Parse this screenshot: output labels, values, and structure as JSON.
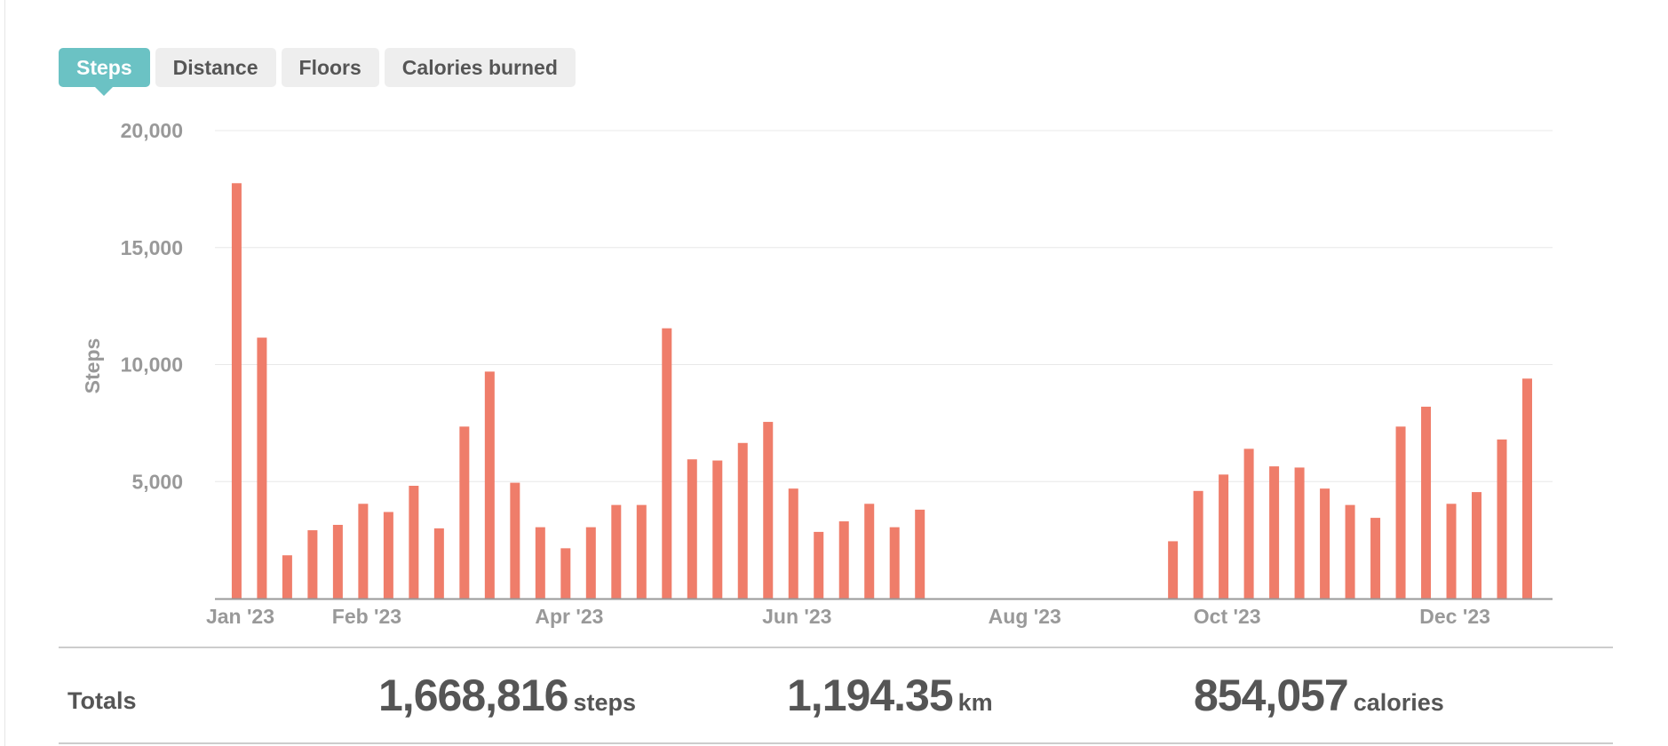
{
  "tabs": [
    {
      "label": "Steps",
      "active": true
    },
    {
      "label": "Distance",
      "active": false
    },
    {
      "label": "Floors",
      "active": false
    },
    {
      "label": "Calories burned",
      "active": false
    }
  ],
  "totals": {
    "label": "Totals",
    "steps": {
      "value": "1,668,816",
      "unit": "steps"
    },
    "distance": {
      "value": "1,194.35",
      "unit": "km"
    },
    "calories": {
      "value": "854,057",
      "unit": "calories"
    }
  },
  "colors": {
    "bar": "#ef7d6a",
    "accent": "#6bc2c4",
    "grid": "#e8e8e8",
    "axis": "#999999"
  },
  "chart_data": {
    "type": "bar",
    "ylabel": "Steps",
    "ylim": [
      0,
      20000
    ],
    "yticks": [
      5000,
      10000,
      15000,
      20000
    ],
    "ytick_labels": [
      "5,000",
      "10,000",
      "15,000",
      "20,000"
    ],
    "xlim": [
      "2022-12-26",
      "2023-12-31"
    ],
    "xticks": [
      "2023-01-02",
      "2023-02-06",
      "2023-04-03",
      "2023-06-05",
      "2023-08-07",
      "2023-10-02",
      "2023-12-04"
    ],
    "xtick_labels": [
      "Jan '23",
      "Feb '23",
      "Apr '23",
      "Jun '23",
      "Aug '23",
      "Oct '23",
      "Dec '23"
    ],
    "grid": true,
    "x": [
      "2023-01-01",
      "2023-01-08",
      "2023-01-15",
      "2023-01-22",
      "2023-01-29",
      "2023-02-05",
      "2023-02-12",
      "2023-02-19",
      "2023-02-26",
      "2023-03-05",
      "2023-03-12",
      "2023-03-19",
      "2023-03-26",
      "2023-04-02",
      "2023-04-09",
      "2023-04-16",
      "2023-04-23",
      "2023-04-30",
      "2023-05-07",
      "2023-05-14",
      "2023-05-21",
      "2023-05-28",
      "2023-06-04",
      "2023-06-11",
      "2023-06-18",
      "2023-06-25",
      "2023-07-02",
      "2023-07-09",
      "2023-07-16",
      "2023-07-23",
      "2023-07-30",
      "2023-08-06",
      "2023-08-13",
      "2023-08-20",
      "2023-08-27",
      "2023-09-03",
      "2023-09-10",
      "2023-09-17",
      "2023-09-24",
      "2023-10-01",
      "2023-10-08",
      "2023-10-15",
      "2023-10-22",
      "2023-10-29",
      "2023-11-05",
      "2023-11-12",
      "2023-11-19",
      "2023-11-26",
      "2023-12-03",
      "2023-12-10",
      "2023-12-17",
      "2023-12-24"
    ],
    "series": [
      {
        "values": [
          17750,
          11150,
          1850,
          2920,
          3150,
          4050,
          3700,
          4820,
          3000,
          7350,
          9700,
          4950,
          3050,
          2150,
          3050,
          4000,
          4000,
          11550,
          5950,
          5900,
          6650,
          7550,
          4700,
          2850,
          3300,
          4050,
          3050,
          3800,
          0,
          0,
          0,
          0,
          0,
          0,
          0,
          0,
          0,
          2450,
          4600,
          5300,
          6400,
          5650,
          5600,
          4700,
          4000,
          3450,
          7350,
          8200,
          4050,
          4550,
          6800,
          9400
        ]
      }
    ]
  }
}
